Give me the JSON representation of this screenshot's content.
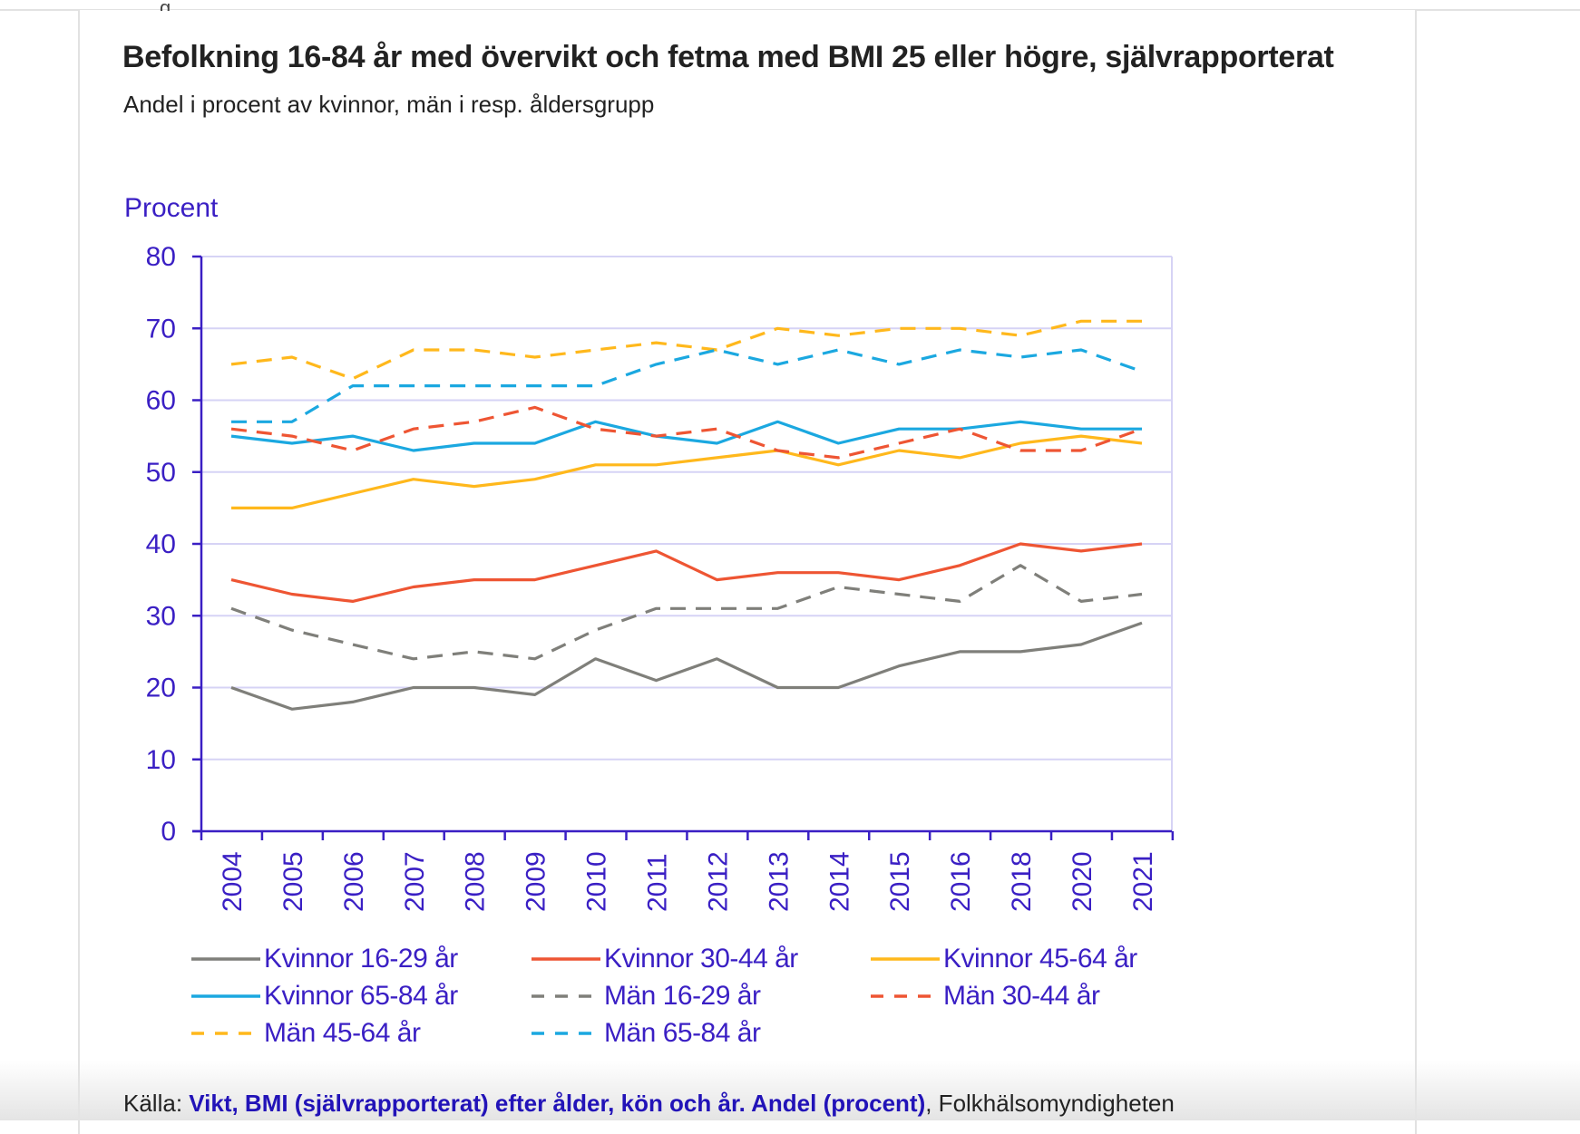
{
  "page": {
    "title": "Befolkning 16-84 år med övervikt och fetma med BMI 25 eller högre, självrapporterat",
    "subtitle": "Andel i procent av kvinnor, män i resp. åldersgrupp",
    "source_prefix": "Källa: ",
    "source_link_text": "Vikt, BMI (självrapporterat) efter ålder, kön och år. Andel (procent)",
    "source_suffix": ", Folkhälsomyndigheten"
  },
  "colors": {
    "axis": "#3a1fc4",
    "grid": "#d6d3f5",
    "gray": "#7f7f7a",
    "red": "#ee5533",
    "yellow": "#ffb81c",
    "blue": "#1ba8e0"
  },
  "chart_data": {
    "type": "line",
    "title": "",
    "ylabel": "Procent",
    "xlabel": "",
    "ylim": [
      0,
      80
    ],
    "yticks": [
      0,
      10,
      20,
      30,
      40,
      50,
      60,
      70,
      80
    ],
    "grid": true,
    "legend_position": "bottom",
    "categories": [
      "2004",
      "2005",
      "2006",
      "2007",
      "2008",
      "2009",
      "2010",
      "2011",
      "2012",
      "2013",
      "2014",
      "2015",
      "2016",
      "2018",
      "2020",
      "2021"
    ],
    "series": [
      {
        "name": "Kvinnor 16-29 år",
        "color": "gray",
        "dashed": false,
        "values": [
          20,
          17,
          18,
          20,
          20,
          19,
          24,
          21,
          24,
          20,
          20,
          23,
          25,
          25,
          26,
          29
        ]
      },
      {
        "name": "Kvinnor 30-44 år",
        "color": "red",
        "dashed": false,
        "values": [
          35,
          33,
          32,
          34,
          35,
          35,
          37,
          39,
          35,
          36,
          36,
          35,
          37,
          40,
          39,
          40
        ]
      },
      {
        "name": "Kvinnor 45-64 år",
        "color": "yellow",
        "dashed": false,
        "values": [
          45,
          45,
          47,
          49,
          48,
          49,
          51,
          51,
          52,
          53,
          51,
          53,
          52,
          54,
          55,
          54
        ]
      },
      {
        "name": "Kvinnor 65-84 år",
        "color": "blue",
        "dashed": false,
        "values": [
          55,
          54,
          55,
          53,
          54,
          54,
          57,
          55,
          54,
          57,
          54,
          56,
          56,
          57,
          56,
          56
        ]
      },
      {
        "name": "Män 16-29 år",
        "color": "gray",
        "dashed": true,
        "values": [
          31,
          28,
          26,
          24,
          25,
          24,
          28,
          31,
          31,
          31,
          34,
          33,
          32,
          37,
          32,
          33
        ]
      },
      {
        "name": "Män 30-44 år",
        "color": "red",
        "dashed": true,
        "values": [
          56,
          55,
          53,
          56,
          57,
          59,
          56,
          55,
          56,
          53,
          52,
          54,
          56,
          53,
          53,
          56
        ]
      },
      {
        "name": "Män 45-64 år",
        "color": "yellow",
        "dashed": true,
        "values": [
          65,
          66,
          63,
          67,
          67,
          66,
          67,
          68,
          67,
          70,
          69,
          70,
          70,
          69,
          71,
          71
        ]
      },
      {
        "name": "Män 65-84 år",
        "color": "blue",
        "dashed": true,
        "values": [
          57,
          57,
          62,
          62,
          62,
          62,
          62,
          65,
          67,
          65,
          67,
          65,
          67,
          66,
          67,
          64
        ]
      }
    ]
  }
}
